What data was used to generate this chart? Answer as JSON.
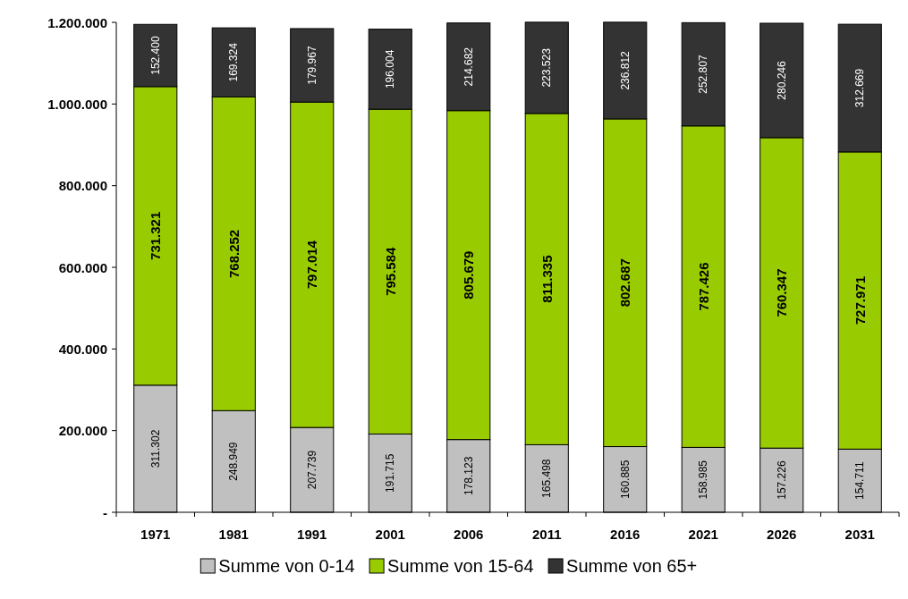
{
  "chart_data": {
    "type": "bar",
    "stacked": true,
    "categories": [
      "1971",
      "1981",
      "1991",
      "2001",
      "2006",
      "2011",
      "2016",
      "2021",
      "2026",
      "2031"
    ],
    "series": [
      {
        "name": "Summe von 0-14",
        "color": "#c0c0c0",
        "values": [
          311302,
          248949,
          207739,
          191715,
          178123,
          165498,
          160885,
          158985,
          157226,
          154711
        ],
        "value_labels": [
          "311.302",
          "248.949",
          "207.739",
          "191.715",
          "178.123",
          "165.498",
          "160.885",
          "158.985",
          "157.226",
          "154.711"
        ]
      },
      {
        "name": "Summe von 15-64",
        "color": "#99cc00",
        "values": [
          731321,
          768252,
          797014,
          795584,
          805679,
          811335,
          802687,
          787426,
          760347,
          727971
        ],
        "value_labels": [
          "731.321",
          "768.252",
          "797.014",
          "795.584",
          "805.679",
          "811.335",
          "802.687",
          "787.426",
          "760.347",
          "727.971"
        ]
      },
      {
        "name": "Summe von 65+",
        "color": "#333333",
        "values": [
          152400,
          169324,
          179967,
          196004,
          214682,
          223523,
          236812,
          252807,
          280246,
          312669
        ],
        "value_labels": [
          "152.400",
          "169.324",
          "179.967",
          "196.004",
          "214.682",
          "223.523",
          "236.812",
          "252.807",
          "280.246",
          "312.669"
        ]
      }
    ],
    "ylim": [
      0,
      1200000
    ],
    "yticks": [
      {
        "value": 0,
        "label": "-"
      },
      {
        "value": 200000,
        "label": "200.000"
      },
      {
        "value": 400000,
        "label": "400.000"
      },
      {
        "value": 600000,
        "label": "600.000"
      },
      {
        "value": 800000,
        "label": "800.000"
      },
      {
        "value": 1000000,
        "label": "1.000.000"
      },
      {
        "value": 1200000,
        "label": "1.200.000"
      }
    ],
    "grid": false,
    "legend": "bottom"
  }
}
